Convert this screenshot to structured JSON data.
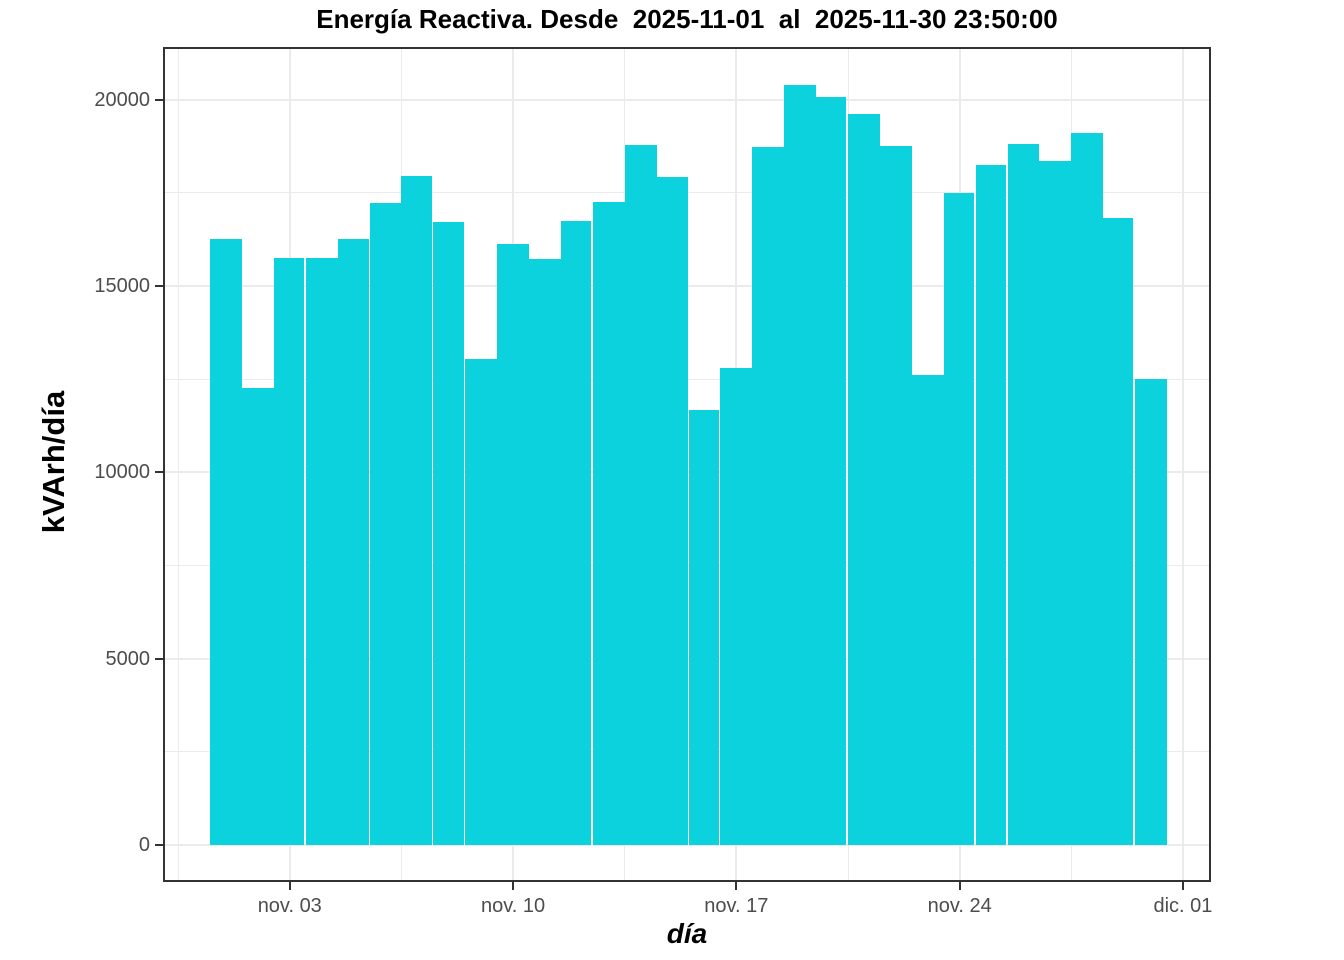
{
  "title": "Energía Reactiva. Desde  2025-11-01  al  2025-11-30 23:50:00",
  "axes": {
    "y_label": "kVArh/día",
    "x_label": "día"
  },
  "chart_data": {
    "type": "bar",
    "title": "Energía Reactiva. Desde  2025-11-01  al  2025-11-30 23:50:00",
    "xlabel": "día",
    "ylabel": "kVArh/día",
    "x": [
      "2025-11-01",
      "2025-11-02",
      "2025-11-03",
      "2025-11-04",
      "2025-11-05",
      "2025-11-06",
      "2025-11-07",
      "2025-11-08",
      "2025-11-09",
      "2025-11-10",
      "2025-11-11",
      "2025-11-12",
      "2025-11-13",
      "2025-11-14",
      "2025-11-15",
      "2025-11-16",
      "2025-11-17",
      "2025-11-18",
      "2025-11-19",
      "2025-11-20",
      "2025-11-21",
      "2025-11-22",
      "2025-11-23",
      "2025-11-24",
      "2025-11-25",
      "2025-11-26",
      "2025-11-27",
      "2025-11-28",
      "2025-11-29",
      "2025-11-30"
    ],
    "values": [
      16250,
      12260,
      15760,
      15740,
      16250,
      17210,
      17960,
      16720,
      13040,
      16130,
      15730,
      16740,
      17250,
      18790,
      17920,
      11660,
      12790,
      18720,
      20390,
      20060,
      19610,
      18740,
      12620,
      17500,
      18230,
      18800,
      18350,
      19100,
      16820,
      12500
    ],
    "ylim": [
      0,
      21400
    ],
    "ytick_values": [
      0,
      5000,
      10000,
      15000,
      20000
    ],
    "ytick_labels": [
      "0",
      "5000",
      "10000",
      "15000",
      "20000"
    ],
    "minor_ytick_values": [
      2500,
      7500,
      12500,
      17500
    ],
    "xtick_days": [
      3,
      10,
      17,
      24,
      31
    ],
    "xtick_labels": [
      "nov. 03",
      "nov. 10",
      "nov. 17",
      "nov. 24",
      "dic. 01"
    ],
    "minor_xtick_days": [
      -0.5,
      6.5,
      13.5,
      20.5,
      27.5
    ],
    "gap_after_bars": [
      3,
      7,
      8,
      12,
      16,
      20,
      24,
      25,
      29
    ],
    "bar_color": "#0bd2dc",
    "grid_color": "#ebebeb",
    "panel_border_color": "#333333",
    "tick_label_color": "#4d4d4d",
    "legend_position": "none",
    "grid": true
  }
}
